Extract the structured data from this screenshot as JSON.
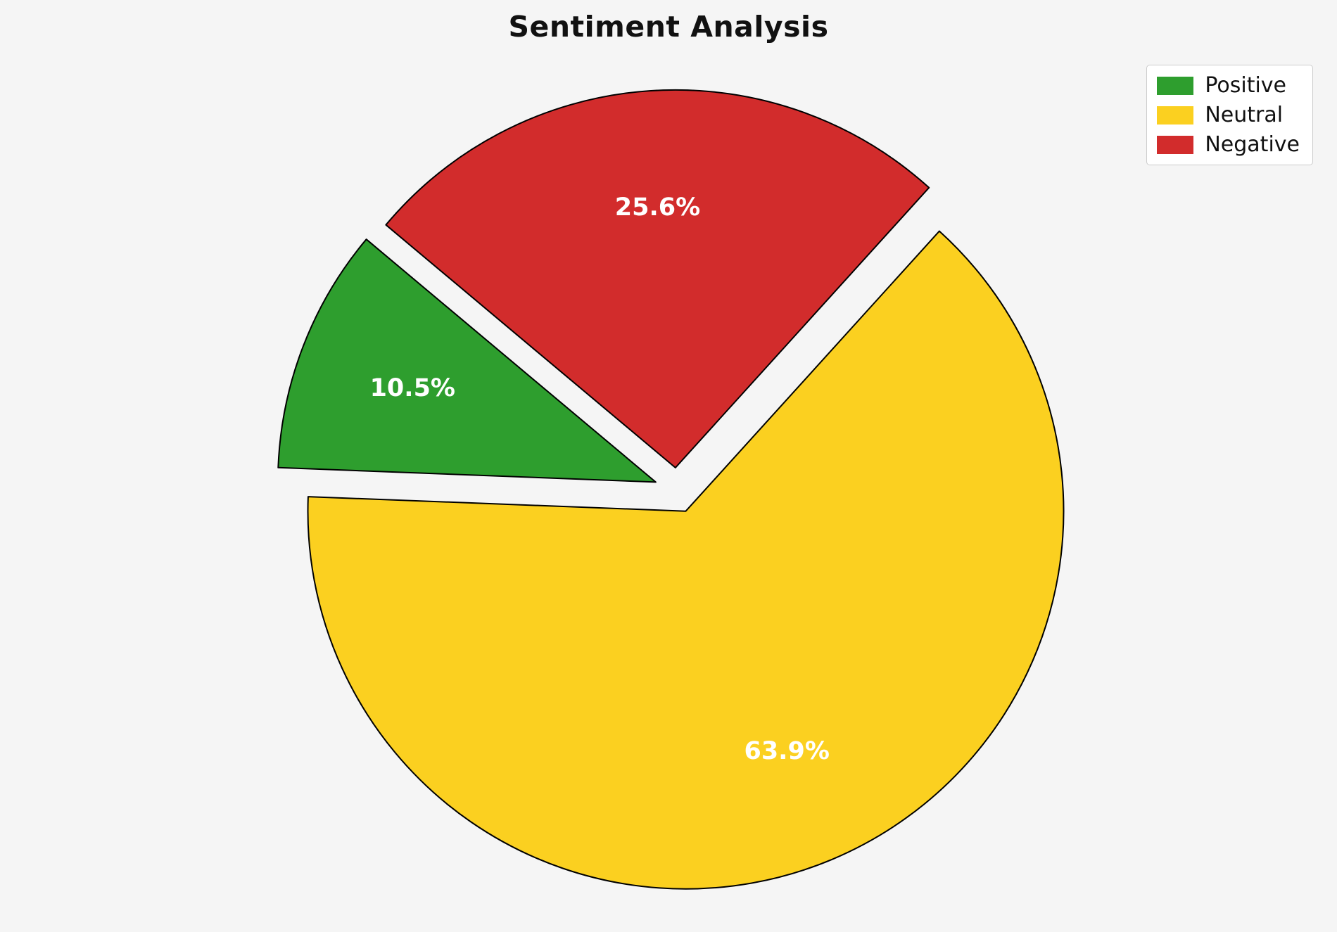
{
  "page": {
    "background": "#F5F5F5"
  },
  "chart_data": {
    "type": "pie",
    "title": "Sentiment Analysis",
    "labels": [
      "Positive",
      "Neutral",
      "Negative"
    ],
    "values": [
      10.5,
      63.9,
      25.6
    ],
    "pct_labels": [
      "10.5%",
      "63.9%",
      "25.6%"
    ],
    "colors": [
      "#2E9E2E",
      "#FBD020",
      "#D22C2C"
    ],
    "edge_color": "#000000",
    "label_color": "#FFFFFF",
    "startangle": 140,
    "counterclockwise": true,
    "explode": [
      0.06,
      0.06,
      0.06
    ],
    "pctdistance": 0.69,
    "legend": {
      "position": "upper right",
      "items": [
        "Positive",
        "Neutral",
        "Negative"
      ]
    }
  }
}
